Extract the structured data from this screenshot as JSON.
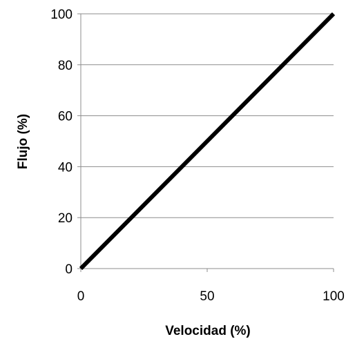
{
  "chart_data": {
    "type": "line",
    "title": "",
    "xlabel": "Velocidad (%)",
    "ylabel": "Flujo (%)",
    "xlim": [
      0,
      100
    ],
    "ylim": [
      0,
      100
    ],
    "x_ticks": [
      "0",
      "50",
      "100"
    ],
    "y_ticks": [
      "0",
      "20",
      "40",
      "60",
      "80",
      "100"
    ],
    "grid": "horizontal",
    "legend": "none",
    "series": [
      {
        "x": [
          0,
          100
        ],
        "y": [
          0,
          100
        ],
        "color": "#000000"
      }
    ]
  }
}
